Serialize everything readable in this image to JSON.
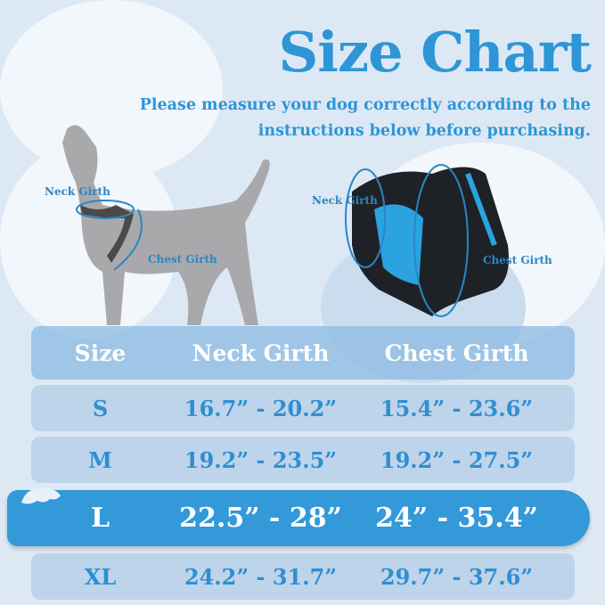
{
  "title": "Size Chart",
  "subtitle": [
    "Please measure your dog correctly according to the",
    "instructions below before purchasing."
  ],
  "dog_labels": {
    "neck": "Neck Girth",
    "chest": "Chest Girth"
  },
  "harness_labels": {
    "neck": "Neck Girth",
    "chest": "Chest Girth"
  },
  "colors": {
    "accent": "#2e96d6",
    "highlight_row": "#3399d9",
    "background": "#dce9f5"
  },
  "table": {
    "headers": [
      "Size",
      "Neck Girth",
      "Chest Girth"
    ],
    "rows": [
      {
        "size": "S",
        "neck": "16.7” - 20.2”",
        "chest": "15.4” - 23.6”"
      },
      {
        "size": "M",
        "neck": "19.2” - 23.5”",
        "chest": "19.2” - 27.5”"
      },
      {
        "size": "L",
        "neck": "22.5” - 28”",
        "chest": "24” - 35.4”"
      },
      {
        "size": "XL",
        "neck": "24.2” - 31.7”",
        "chest": "29.7” - 37.6”"
      }
    ],
    "highlighted_size": "L"
  }
}
